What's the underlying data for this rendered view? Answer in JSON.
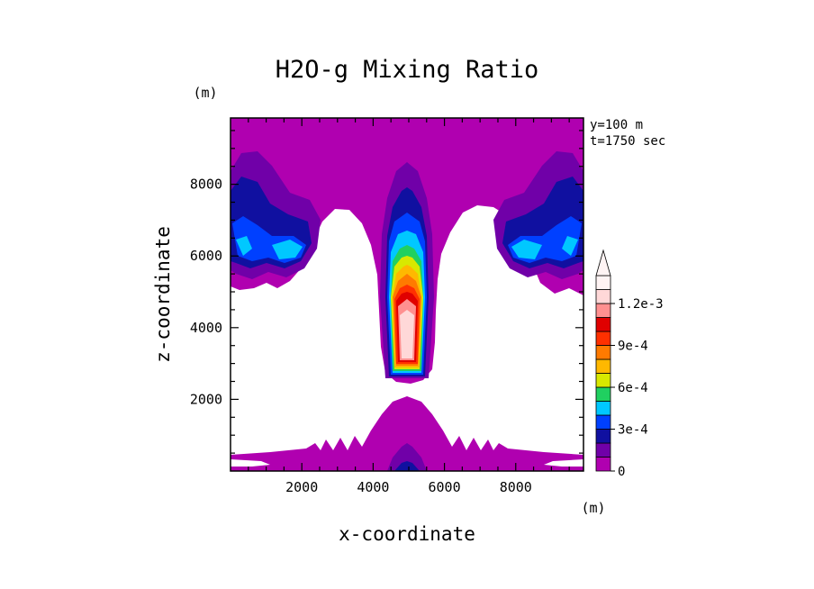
{
  "chart_data": {
    "type": "heatmap",
    "title": "H2O-g Mixing Ratio",
    "xlabel": "x-coordinate",
    "ylabel": "z-coordinate",
    "x_unit": "(m)",
    "y_unit": "(m)",
    "xlim": [
      0,
      9900
    ],
    "ylim": [
      0,
      9850
    ],
    "x_ticks": [
      2000,
      4000,
      6000,
      8000
    ],
    "y_ticks": [
      2000,
      4000,
      6000,
      8000
    ],
    "annotations": [
      "y=100 m",
      "t=1750 sec"
    ],
    "colorbar": {
      "labels": [
        {
          "value": 0,
          "text": "0"
        },
        {
          "value": 0.0003,
          "text": "3e-4"
        },
        {
          "value": 0.0006,
          "text": "6e-4"
        },
        {
          "value": 0.0009,
          "text": "9e-4"
        },
        {
          "value": 0.0012,
          "text": "1.2e-3"
        }
      ],
      "levels": [
        {
          "min": 0,
          "color": "#b000b0"
        },
        {
          "min": 0.0001,
          "color": "#7000a8"
        },
        {
          "min": 0.0002,
          "color": "#1010a0"
        },
        {
          "min": 0.0003,
          "color": "#0040ff"
        },
        {
          "min": 0.0004,
          "color": "#00c8ff"
        },
        {
          "min": 0.0005,
          "color": "#20d060"
        },
        {
          "min": 0.0006,
          "color": "#d8e800"
        },
        {
          "min": 0.0007,
          "color": "#ffb800"
        },
        {
          "min": 0.0008,
          "color": "#ff7a00"
        },
        {
          "min": 0.0009,
          "color": "#ff3000"
        },
        {
          "min": 0.001,
          "color": "#e00000"
        },
        {
          "min": 0.0011,
          "color": "#ff9090"
        },
        {
          "min": 0.0012,
          "color": "#ffd8d8"
        },
        {
          "min": 0.0013,
          "color": "#fff4f4"
        }
      ],
      "extend": "max"
    }
  }
}
